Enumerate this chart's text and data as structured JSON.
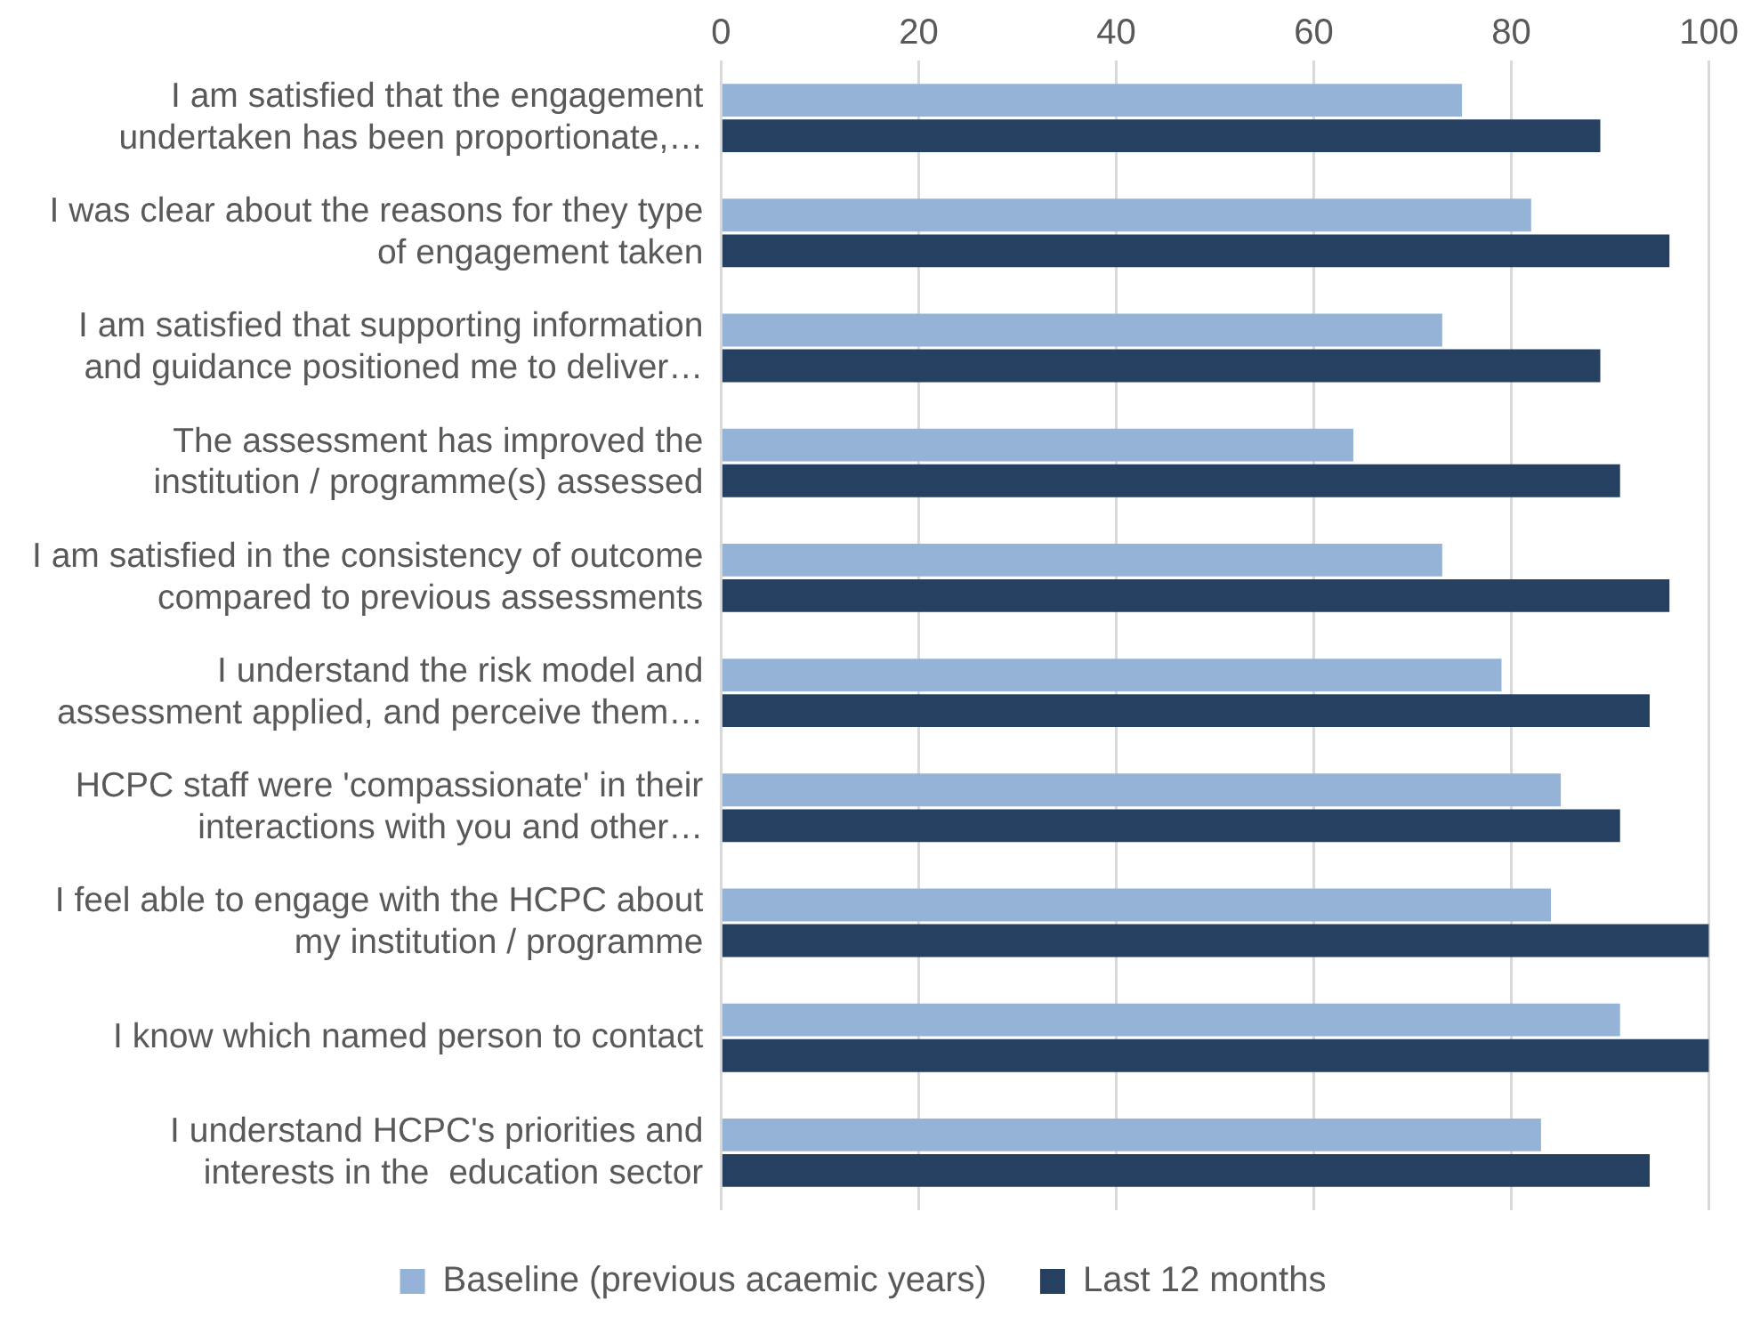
{
  "chart_data": {
    "type": "bar",
    "orientation": "horizontal",
    "categories": [
      "I am satisfied that the engagement\nundertaken has been proportionate,…",
      "I was clear about the reasons for they type\nof engagement taken",
      "I am satisfied that supporting information\nand guidance positioned me to deliver…",
      "The assessment has improved the\ninstitution / programme(s) assessed",
      "I am satisfied in the consistency of outcome\ncompared to previous assessments",
      "I understand the risk model and\nassessment applied, and perceive them…",
      "HCPC staff were 'compassionate' in their\ninteractions with you and other…",
      "I feel able to engage with the HCPC about\nmy institution / programme",
      "I know which named person to contact",
      "I understand HCPC's priorities and\ninterests in the  education sector"
    ],
    "series": [
      {
        "name": "Baseline (previous acaemic years)",
        "color": "#95b3d7",
        "values": [
          75,
          82,
          73,
          64,
          73,
          79,
          85,
          84,
          91,
          83
        ]
      },
      {
        "name": "Last 12 months",
        "color": "#254061",
        "values": [
          89,
          96,
          89,
          91,
          96,
          94,
          91,
          100,
          100,
          94
        ]
      }
    ],
    "xlim": [
      0,
      100
    ],
    "xticks": [
      0,
      20,
      40,
      60,
      80,
      100
    ],
    "grid": "x",
    "legend": "bottom"
  }
}
